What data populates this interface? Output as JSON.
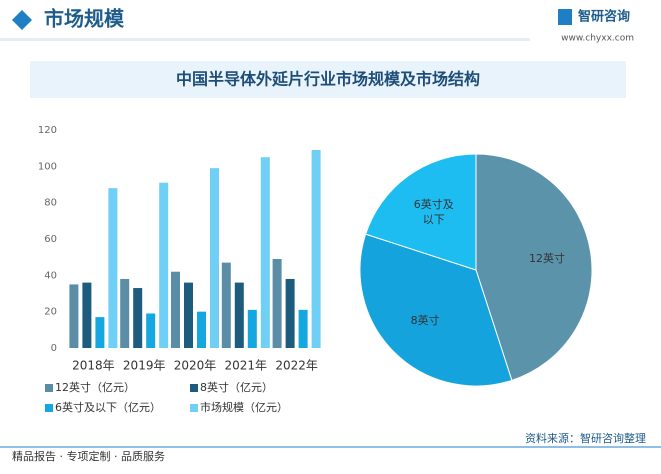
{
  "header": {
    "title": "市场规模",
    "logo": "智研咨询",
    "url": "www.chyxx.com"
  },
  "title": "中国半导体外延片行业市场规模及市场结构",
  "chart_data": [
    {
      "type": "bar",
      "categories": [
        "2018年",
        "2019年",
        "2020年",
        "2021年",
        "2022年"
      ],
      "series": [
        {
          "name": "12英寸（亿元）",
          "color": "#5b8ea6",
          "values": [
            35,
            38,
            42,
            47,
            49
          ]
        },
        {
          "name": "8英寸（亿元）",
          "color": "#1d5c7c",
          "values": [
            36,
            33,
            36,
            36,
            38
          ]
        },
        {
          "name": "6英寸及以下（亿元）",
          "color": "#14a7e0",
          "values": [
            17,
            19,
            20,
            21,
            21
          ]
        },
        {
          "name": "市场规模（亿元）",
          "color": "#6fcff5",
          "values": [
            88,
            91,
            99,
            105,
            109
          ]
        }
      ],
      "ylim": [
        0,
        120
      ],
      "yticks": [
        0,
        20,
        40,
        60,
        80,
        100,
        120
      ],
      "grid": false
    },
    {
      "type": "pie",
      "categories": [
        "12英寸",
        "8英寸",
        "6英寸及以下"
      ],
      "values": [
        45,
        35,
        20
      ],
      "colors": [
        "#5b93ab",
        "#14a3dd",
        "#1dbdf1"
      ]
    }
  ],
  "footer": {
    "slogan": "精品报告 · 专项定制 · 品质服务",
    "source": "资料来源：智研咨询整理"
  }
}
